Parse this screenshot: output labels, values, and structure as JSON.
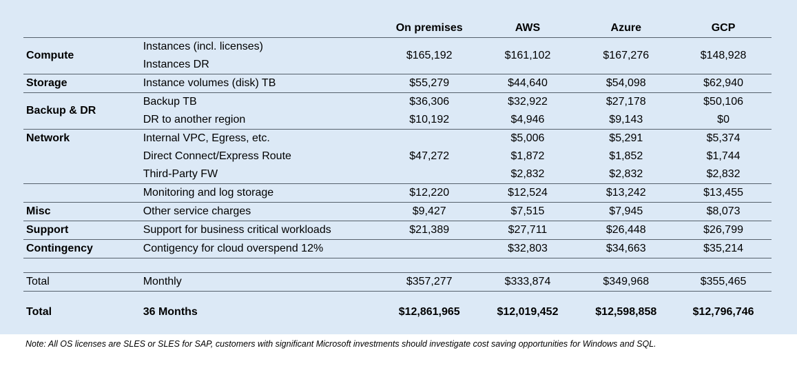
{
  "table": {
    "headers": [
      "",
      "",
      "On premises",
      "AWS",
      "Azure",
      "GCP"
    ],
    "compute": {
      "category": "Compute",
      "items": [
        "Instances  (incl. licenses)",
        "Instances DR"
      ],
      "values": [
        "$165,192",
        "$161,102",
        "$167,276",
        "$148,928"
      ]
    },
    "storage": {
      "category": "Storage",
      "item": "Instance volumes (disk) TB",
      "values": [
        "$55,279",
        "$44,640",
        "$54,098",
        "$62,940"
      ]
    },
    "backup": {
      "category": "Backup & DR",
      "rows": [
        {
          "item": "Backup TB",
          "values": [
            "$36,306",
            "$32,922",
            "$27,178",
            "$50,106"
          ]
        },
        {
          "item": "DR to another region",
          "values": [
            "$10,192",
            "$4,946",
            "$9,143",
            "$0"
          ]
        }
      ]
    },
    "network": {
      "category": "Network",
      "onprem": "$47,272",
      "rows": [
        {
          "item": "Internal VPC, Egress, etc.",
          "values": [
            "$5,006",
            "$5,291",
            "$5,374"
          ]
        },
        {
          "item": "Direct Connect/Express Route",
          "values": [
            "$1,872",
            "$1,852",
            "$1,744"
          ]
        },
        {
          "item": "Third-Party FW",
          "values": [
            "$2,832",
            "$2,832",
            "$2,832"
          ]
        }
      ]
    },
    "monitoring": {
      "item": "Monitoring and log storage",
      "values": [
        "$12,220",
        "$12,524",
        "$13,242",
        "$13,455"
      ]
    },
    "misc": {
      "category": "Misc",
      "item": "Other service charges",
      "values": [
        "$9,427",
        "$7,515",
        "$7,945",
        "$8,073"
      ]
    },
    "support": {
      "category": "Support",
      "item": "Support for business critical workloads",
      "values": [
        "$21,389",
        "$27,711",
        "$26,448",
        "$26,799"
      ]
    },
    "contingency": {
      "category": "Contingency",
      "item": "Contigency for cloud overspend 12%",
      "values": [
        "",
        "$32,803",
        "$34,663",
        "$35,214"
      ]
    },
    "total_monthly": {
      "category": "Total",
      "item": "Monthly",
      "values": [
        "$357,277",
        "$333,874",
        "$349,968",
        "$355,465"
      ]
    },
    "total_36": {
      "category": "Total",
      "item": "36 Months",
      "values": [
        "$12,861,965",
        "$12,019,452",
        "$12,598,858",
        "$12,796,746"
      ]
    }
  },
  "note": "Note: All OS licenses are SLES or SLES for SAP, customers with  significant Microsoft investments should investigate cost saving opportunities for Windows and SQL.",
  "chart_data": {
    "type": "table",
    "columns": [
      "",
      "",
      "On premises",
      "AWS",
      "Azure",
      "GCP"
    ],
    "rows": [
      [
        "Compute",
        "Instances  (incl. licenses) / Instances DR",
        "$165,192",
        "$161,102",
        "$167,276",
        "$148,928"
      ],
      [
        "Storage",
        "Instance volumes (disk) TB",
        "$55,279",
        "$44,640",
        "$54,098",
        "$62,940"
      ],
      [
        "Backup & DR",
        "Backup TB",
        "$36,306",
        "$32,922",
        "$27,178",
        "$50,106"
      ],
      [
        "Backup & DR",
        "DR to another region",
        "$10,192",
        "$4,946",
        "$9,143",
        "$0"
      ],
      [
        "Network",
        "Internal VPC, Egress, etc.",
        "$47,272",
        "$5,006",
        "$5,291",
        "$5,374"
      ],
      [
        "Network",
        "Direct Connect/Express Route",
        "",
        "$1,872",
        "$1,852",
        "$1,744"
      ],
      [
        "Network",
        "Third-Party FW",
        "",
        "$2,832",
        "$2,832",
        "$2,832"
      ],
      [
        "",
        "Monitoring and log storage",
        "$12,220",
        "$12,524",
        "$13,242",
        "$13,455"
      ],
      [
        "Misc",
        "Other service charges",
        "$9,427",
        "$7,515",
        "$7,945",
        "$8,073"
      ],
      [
        "Support",
        "Support for business critical workloads",
        "$21,389",
        "$27,711",
        "$26,448",
        "$26,799"
      ],
      [
        "Contingency",
        "Contigency for cloud overspend 12%",
        "",
        "$32,803",
        "$34,663",
        "$35,214"
      ],
      [
        "Total",
        "Monthly",
        "$357,277",
        "$333,874",
        "$349,968",
        "$355,465"
      ],
      [
        "Total",
        "36 Months",
        "$12,861,965",
        "$12,019,452",
        "$12,598,858",
        "$12,796,746"
      ]
    ]
  }
}
